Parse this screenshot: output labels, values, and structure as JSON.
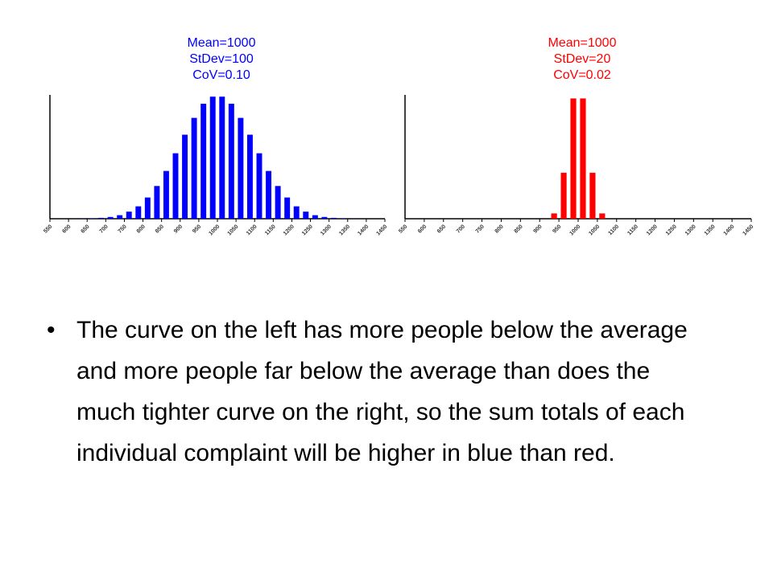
{
  "chart_data": [
    {
      "type": "histogram",
      "color": "#0000ff",
      "annotations": [
        "Mean=1000",
        "StDev=100",
        "CoV=0.10"
      ],
      "bins": [
        550,
        575,
        600,
        625,
        650,
        675,
        700,
        725,
        750,
        775,
        800,
        825,
        850,
        875,
        900,
        925,
        950,
        975,
        1000,
        1025,
        1050,
        1075,
        1100,
        1125,
        1150,
        1175,
        1200,
        1225,
        1250,
        1275,
        1300,
        1325,
        1350,
        1375,
        1400,
        1425,
        1450
      ],
      "values": [
        0,
        0,
        0.1,
        0.2,
        0.5,
        1,
        2,
        4,
        8,
        14,
        24,
        37,
        54,
        74,
        95,
        114,
        130,
        138,
        138,
        130,
        114,
        95,
        74,
        54,
        37,
        24,
        14,
        8,
        4,
        2,
        1,
        0.5,
        0.2,
        0.1,
        0,
        0
      ],
      "xlim": [
        550,
        1450
      ],
      "xticks": [
        550,
        600,
        650,
        700,
        750,
        800,
        850,
        900,
        950,
        1000,
        1050,
        1100,
        1150,
        1200,
        1250,
        1300,
        1350,
        1400,
        1450
      ],
      "ylim": [
        0,
        140
      ]
    },
    {
      "type": "histogram",
      "color": "#ff0000",
      "annotations": [
        "Mean=1000",
        "StDev=20",
        "CoV=0.02"
      ],
      "bins": [
        550,
        575,
        600,
        625,
        650,
        675,
        700,
        725,
        750,
        775,
        800,
        825,
        850,
        875,
        900,
        925,
        950,
        975,
        1000,
        1025,
        1050,
        1075,
        1100,
        1125,
        1150,
        1175,
        1200,
        1225,
        1250,
        1275,
        1300,
        1325,
        1350,
        1375,
        1400,
        1425,
        1450
      ],
      "values": [
        0,
        0,
        0,
        0,
        0,
        0,
        0,
        0,
        0,
        0,
        0,
        0,
        0,
        0,
        0,
        6,
        52,
        136,
        136,
        52,
        6,
        0,
        0,
        0,
        0,
        0,
        0,
        0,
        0,
        0,
        0,
        0,
        0,
        0,
        0,
        0
      ],
      "xlim": [
        550,
        1450
      ],
      "xticks": [
        550,
        600,
        650,
        700,
        750,
        800,
        850,
        900,
        950,
        1000,
        1050,
        1100,
        1150,
        1200,
        1250,
        1300,
        1350,
        1400,
        1450
      ],
      "ylim": [
        0,
        140
      ]
    }
  ],
  "bullet": "The curve on the left has more people below the average and more people far below the average than does the much tighter curve on the right, so the sum totals of each individual complaint will be higher in blue than red."
}
